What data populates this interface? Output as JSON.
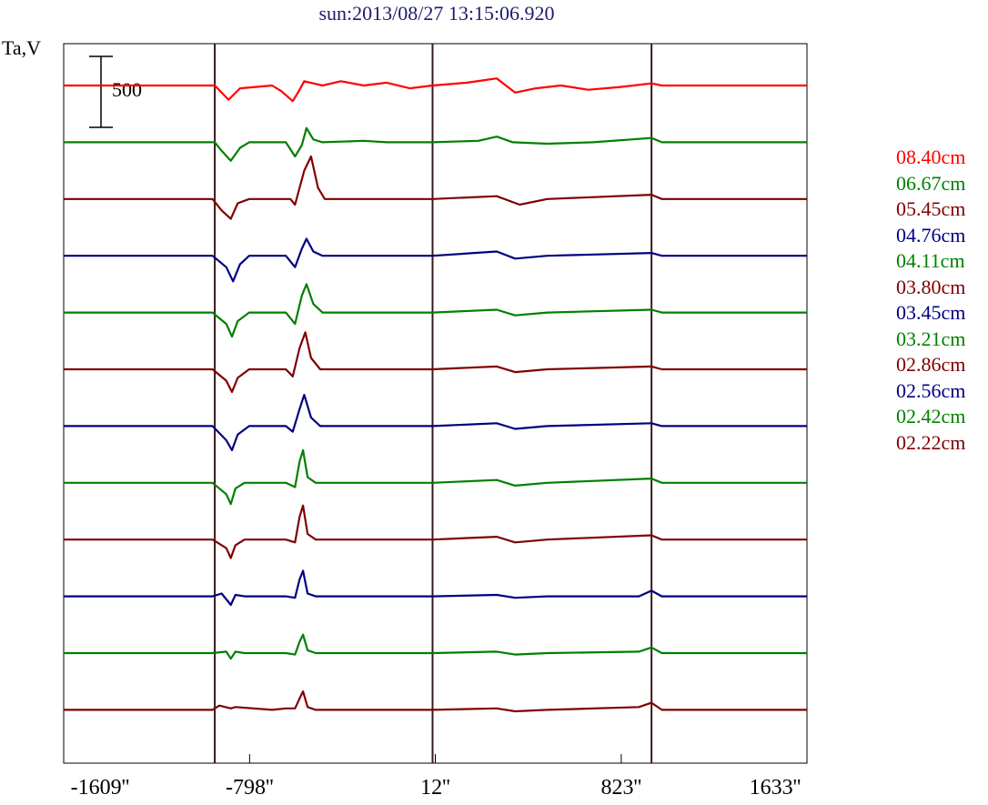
{
  "chart_data": {
    "type": "line",
    "title": "sun:2013/08/27 13:15:06.920",
    "ylabel": "Ta,V",
    "scale_bar": {
      "value": 500,
      "label": "500"
    },
    "xlim": [
      -1609,
      1633
    ],
    "x_ticks": [
      {
        "value": -1609,
        "label": "-1609''"
      },
      {
        "value": -798,
        "label": "-798''"
      },
      {
        "value": 12,
        "label": "12''"
      },
      {
        "value": 823,
        "label": "823''"
      },
      {
        "value": 1633,
        "label": "1633''"
      }
    ],
    "limb_markers_arcsec": [
      -950,
      0,
      955
    ],
    "series": [
      {
        "name": "08.40cm",
        "color": "#ff0000",
        "idx": 0,
        "points": [
          [
            -1609,
            0
          ],
          [
            -950,
            0
          ],
          [
            -890,
            -100
          ],
          [
            -840,
            -20
          ],
          [
            -700,
            0
          ],
          [
            -660,
            -40
          ],
          [
            -610,
            -110
          ],
          [
            -580,
            -30
          ],
          [
            -560,
            30
          ],
          [
            -480,
            0
          ],
          [
            -400,
            30
          ],
          [
            -300,
            0
          ],
          [
            -200,
            20
          ],
          [
            -100,
            -20
          ],
          [
            0,
            0
          ],
          [
            150,
            20
          ],
          [
            280,
            50
          ],
          [
            360,
            -50
          ],
          [
            450,
            -20
          ],
          [
            560,
            0
          ],
          [
            680,
            -30
          ],
          [
            820,
            -10
          ],
          [
            955,
            15
          ],
          [
            1000,
            0
          ],
          [
            1633,
            0
          ]
        ]
      },
      {
        "name": "06.67cm",
        "color": "#008000",
        "idx": 1,
        "points": [
          [
            -1609,
            0
          ],
          [
            -950,
            0
          ],
          [
            -920,
            -60
          ],
          [
            -880,
            -130
          ],
          [
            -840,
            -40
          ],
          [
            -800,
            0
          ],
          [
            -640,
            0
          ],
          [
            -600,
            -100
          ],
          [
            -570,
            -20
          ],
          [
            -550,
            100
          ],
          [
            -520,
            20
          ],
          [
            -480,
            0
          ],
          [
            -300,
            10
          ],
          [
            -200,
            0
          ],
          [
            0,
            0
          ],
          [
            200,
            10
          ],
          [
            280,
            40
          ],
          [
            350,
            0
          ],
          [
            500,
            -10
          ],
          [
            700,
            0
          ],
          [
            955,
            30
          ],
          [
            1000,
            0
          ],
          [
            1633,
            0
          ]
        ]
      },
      {
        "name": "05.45cm",
        "color": "#800000",
        "idx": 2,
        "points": [
          [
            -1609,
            0
          ],
          [
            -960,
            0
          ],
          [
            -920,
            -80
          ],
          [
            -880,
            -140
          ],
          [
            -850,
            -30
          ],
          [
            -800,
            0
          ],
          [
            -620,
            0
          ],
          [
            -600,
            -40
          ],
          [
            -560,
            200
          ],
          [
            -530,
            300
          ],
          [
            -500,
            80
          ],
          [
            -470,
            0
          ],
          [
            -300,
            0
          ],
          [
            0,
            0
          ],
          [
            280,
            20
          ],
          [
            380,
            -40
          ],
          [
            500,
            0
          ],
          [
            955,
            30
          ],
          [
            1000,
            0
          ],
          [
            1633,
            0
          ]
        ]
      },
      {
        "name": "04.76cm",
        "color": "#000080",
        "idx": 3,
        "points": [
          [
            -1609,
            0
          ],
          [
            -960,
            0
          ],
          [
            -900,
            -80
          ],
          [
            -870,
            -180
          ],
          [
            -840,
            -60
          ],
          [
            -800,
            0
          ],
          [
            -640,
            0
          ],
          [
            -600,
            -80
          ],
          [
            -570,
            50
          ],
          [
            -550,
            120
          ],
          [
            -520,
            30
          ],
          [
            -480,
            0
          ],
          [
            0,
            0
          ],
          [
            280,
            30
          ],
          [
            360,
            -20
          ],
          [
            500,
            0
          ],
          [
            955,
            20
          ],
          [
            1000,
            0
          ],
          [
            1633,
            0
          ]
        ]
      },
      {
        "name": "04.11cm",
        "color": "#008000",
        "idx": 4,
        "points": [
          [
            -1609,
            0
          ],
          [
            -960,
            0
          ],
          [
            -900,
            -80
          ],
          [
            -875,
            -170
          ],
          [
            -850,
            -60
          ],
          [
            -800,
            0
          ],
          [
            -640,
            0
          ],
          [
            -600,
            -80
          ],
          [
            -570,
            120
          ],
          [
            -550,
            200
          ],
          [
            -520,
            60
          ],
          [
            -480,
            0
          ],
          [
            0,
            0
          ],
          [
            280,
            20
          ],
          [
            360,
            -20
          ],
          [
            500,
            0
          ],
          [
            955,
            20
          ],
          [
            1000,
            0
          ],
          [
            1633,
            0
          ]
        ]
      },
      {
        "name": "03.80cm",
        "color": "#800000",
        "idx": 5,
        "points": [
          [
            -1609,
            0
          ],
          [
            -960,
            0
          ],
          [
            -900,
            -80
          ],
          [
            -875,
            -160
          ],
          [
            -850,
            -60
          ],
          [
            -800,
            0
          ],
          [
            -640,
            0
          ],
          [
            -610,
            -50
          ],
          [
            -580,
            150
          ],
          [
            -555,
            260
          ],
          [
            -530,
            80
          ],
          [
            -490,
            0
          ],
          [
            0,
            0
          ],
          [
            280,
            20
          ],
          [
            360,
            -20
          ],
          [
            500,
            0
          ],
          [
            955,
            20
          ],
          [
            1000,
            0
          ],
          [
            1633,
            0
          ]
        ]
      },
      {
        "name": "03.45cm",
        "color": "#000080",
        "idx": 6,
        "points": [
          [
            -1609,
            0
          ],
          [
            -960,
            0
          ],
          [
            -900,
            -100
          ],
          [
            -875,
            -170
          ],
          [
            -850,
            -60
          ],
          [
            -800,
            0
          ],
          [
            -640,
            0
          ],
          [
            -610,
            -40
          ],
          [
            -580,
            120
          ],
          [
            -560,
            220
          ],
          [
            -530,
            60
          ],
          [
            -490,
            0
          ],
          [
            0,
            0
          ],
          [
            280,
            20
          ],
          [
            360,
            -20
          ],
          [
            500,
            0
          ],
          [
            955,
            20
          ],
          [
            1000,
            0
          ],
          [
            1633,
            0
          ]
        ]
      },
      {
        "name": "03.21cm",
        "color": "#008000",
        "idx": 7,
        "points": [
          [
            -1609,
            0
          ],
          [
            -960,
            0
          ],
          [
            -900,
            -80
          ],
          [
            -880,
            -150
          ],
          [
            -860,
            -40
          ],
          [
            -820,
            0
          ],
          [
            -640,
            0
          ],
          [
            -600,
            -30
          ],
          [
            -580,
            150
          ],
          [
            -565,
            230
          ],
          [
            -545,
            40
          ],
          [
            -510,
            0
          ],
          [
            0,
            0
          ],
          [
            280,
            20
          ],
          [
            360,
            -20
          ],
          [
            500,
            0
          ],
          [
            955,
            30
          ],
          [
            1000,
            0
          ],
          [
            1633,
            0
          ]
        ]
      },
      {
        "name": "02.86cm",
        "color": "#800000",
        "idx": 8,
        "points": [
          [
            -1609,
            0
          ],
          [
            -960,
            0
          ],
          [
            -900,
            -60
          ],
          [
            -880,
            -130
          ],
          [
            -860,
            -40
          ],
          [
            -820,
            0
          ],
          [
            -640,
            0
          ],
          [
            -600,
            -20
          ],
          [
            -580,
            160
          ],
          [
            -565,
            240
          ],
          [
            -545,
            40
          ],
          [
            -510,
            0
          ],
          [
            0,
            0
          ],
          [
            280,
            20
          ],
          [
            360,
            -20
          ],
          [
            500,
            0
          ],
          [
            955,
            30
          ],
          [
            1000,
            0
          ],
          [
            1633,
            0
          ]
        ]
      },
      {
        "name": "02.56cm",
        "color": "#000080",
        "idx": 9,
        "points": [
          [
            -1609,
            0
          ],
          [
            -960,
            0
          ],
          [
            -920,
            20
          ],
          [
            -880,
            -60
          ],
          [
            -860,
            10
          ],
          [
            -820,
            0
          ],
          [
            -640,
            0
          ],
          [
            -600,
            -10
          ],
          [
            -580,
            120
          ],
          [
            -565,
            180
          ],
          [
            -545,
            20
          ],
          [
            -510,
            0
          ],
          [
            0,
            0
          ],
          [
            280,
            10
          ],
          [
            360,
            -10
          ],
          [
            500,
            0
          ],
          [
            900,
            0
          ],
          [
            955,
            40
          ],
          [
            1000,
            0
          ],
          [
            1633,
            0
          ]
        ]
      },
      {
        "name": "02.42cm",
        "color": "#008000",
        "idx": 10,
        "points": [
          [
            -1609,
            0
          ],
          [
            -960,
            0
          ],
          [
            -900,
            10
          ],
          [
            -880,
            -40
          ],
          [
            -860,
            10
          ],
          [
            -820,
            0
          ],
          [
            -640,
            0
          ],
          [
            -600,
            -10
          ],
          [
            -580,
            80
          ],
          [
            -565,
            130
          ],
          [
            -545,
            20
          ],
          [
            -510,
            0
          ],
          [
            0,
            0
          ],
          [
            280,
            10
          ],
          [
            360,
            -10
          ],
          [
            500,
            0
          ],
          [
            900,
            10
          ],
          [
            955,
            40
          ],
          [
            1000,
            0
          ],
          [
            1633,
            0
          ]
        ]
      },
      {
        "name": "02.22cm",
        "color": "#800000",
        "idx": 11,
        "points": [
          [
            -1609,
            0
          ],
          [
            -960,
            0
          ],
          [
            -930,
            30
          ],
          [
            -880,
            10
          ],
          [
            -860,
            20
          ],
          [
            -700,
            0
          ],
          [
            -640,
            10
          ],
          [
            -600,
            10
          ],
          [
            -580,
            80
          ],
          [
            -565,
            130
          ],
          [
            -545,
            20
          ],
          [
            -510,
            0
          ],
          [
            0,
            0
          ],
          [
            280,
            10
          ],
          [
            360,
            -10
          ],
          [
            500,
            0
          ],
          [
            900,
            20
          ],
          [
            955,
            50
          ],
          [
            1000,
            0
          ],
          [
            1633,
            0
          ]
        ]
      }
    ]
  }
}
